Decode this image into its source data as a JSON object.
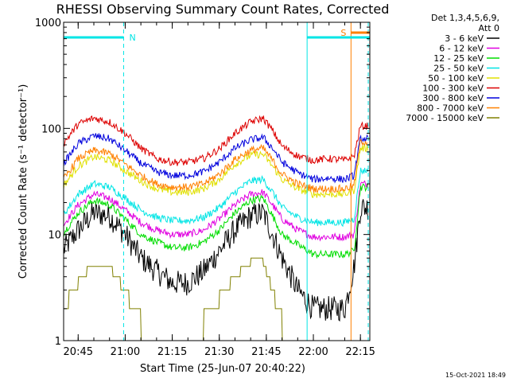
{
  "chart_data": {
    "type": "line",
    "title": "RHESSI Observing Summary Count Rates, Corrected",
    "xlabel": "Start Time (25-Jun-07 20:40:22)",
    "ylabel": "Corrected Count Rate (s⁻¹ detector⁻¹)",
    "y_scale": "log",
    "ylim": [
      1,
      1000
    ],
    "xlim": [
      "20:40:22",
      "22:18"
    ],
    "x_ticks": [
      "20:45",
      "21:00",
      "21:15",
      "21:30",
      "21:45",
      "22:00",
      "22:15"
    ],
    "y_ticks": [
      "1",
      "10",
      "100",
      "1000"
    ],
    "grid": false,
    "legend_header": [
      "Det 1,3,4,5,6,9,",
      "Att 0"
    ],
    "legend_position": "right",
    "series": [
      {
        "name": "3 - 6 keV",
        "color": "#000000",
        "x": [
          "20:40",
          "20:45",
          "20:50",
          "20:55",
          "21:00",
          "21:05",
          "21:10",
          "21:15",
          "21:20",
          "21:25",
          "21:30",
          "21:35",
          "21:40",
          "21:44",
          "21:47",
          "21:50",
          "21:55",
          "22:00",
          "22:05",
          "22:10",
          "22:13",
          "22:15"
        ],
        "y": [
          7,
          11,
          16,
          15,
          10,
          6,
          4.5,
          3.5,
          3.5,
          4.5,
          7,
          11,
          15,
          16,
          10,
          6,
          3,
          2,
          2,
          2,
          5,
          18
        ]
      },
      {
        "name": "6 - 12 keV",
        "color": "#e000e0",
        "x": [
          "20:40",
          "20:45",
          "20:50",
          "20:55",
          "21:00",
          "21:05",
          "21:10",
          "21:15",
          "21:20",
          "21:25",
          "21:30",
          "21:35",
          "21:40",
          "21:44",
          "21:47",
          "21:50",
          "21:55",
          "22:00",
          "22:05",
          "22:10",
          "22:13",
          "22:15"
        ],
        "y": [
          12,
          19,
          24,
          22,
          17,
          13,
          11,
          10,
          10,
          11,
          14,
          19,
          24,
          25,
          19,
          14,
          11,
          9.5,
          9.5,
          9.5,
          10,
          30
        ]
      },
      {
        "name": "12 - 25 keV",
        "color": "#00dd00",
        "x": [
          "20:40",
          "20:45",
          "20:50",
          "20:55",
          "21:00",
          "21:05",
          "21:10",
          "21:15",
          "21:20",
          "21:25",
          "21:30",
          "21:35",
          "21:40",
          "21:44",
          "21:47",
          "21:50",
          "21:55",
          "22:00",
          "22:05",
          "22:10",
          "22:13",
          "22:15"
        ],
        "y": [
          10,
          16,
          21,
          19,
          14,
          10,
          8.5,
          7.5,
          7.5,
          8.5,
          11,
          16,
          21,
          22,
          15,
          10,
          8,
          6.5,
          6.5,
          6.5,
          7,
          28
        ]
      },
      {
        "name": "25 - 50 keV",
        "color": "#00e5e5",
        "x": [
          "20:40",
          "20:45",
          "20:50",
          "20:55",
          "21:00",
          "21:05",
          "21:10",
          "21:15",
          "21:20",
          "21:25",
          "21:30",
          "21:35",
          "21:40",
          "21:44",
          "21:47",
          "21:50",
          "21:55",
          "22:00",
          "22:05",
          "22:10",
          "22:13",
          "22:15"
        ],
        "y": [
          15,
          24,
          30,
          28,
          22,
          17,
          14.5,
          13.5,
          13.5,
          14.5,
          18,
          25,
          32,
          33,
          25,
          18,
          14.5,
          13,
          13,
          13,
          14,
          40
        ]
      },
      {
        "name": "50 - 100 keV",
        "color": "#e0e000",
        "x": [
          "20:40",
          "20:45",
          "20:50",
          "20:55",
          "21:00",
          "21:05",
          "21:10",
          "21:15",
          "21:20",
          "21:25",
          "21:30",
          "21:35",
          "21:40",
          "21:44",
          "21:47",
          "21:50",
          "21:55",
          "22:00",
          "22:05",
          "22:10",
          "22:13",
          "22:15"
        ],
        "y": [
          28,
          44,
          54,
          50,
          40,
          32,
          27,
          25,
          25,
          27,
          33,
          46,
          56,
          57,
          44,
          33,
          27,
          24,
          24,
          24,
          26,
          65
        ]
      },
      {
        "name": "100 - 300 keV",
        "color": "#dd0000",
        "x": [
          "20:40",
          "20:45",
          "20:50",
          "20:55",
          "21:00",
          "21:05",
          "21:10",
          "21:15",
          "21:20",
          "21:25",
          "21:30",
          "21:35",
          "21:40",
          "21:44",
          "21:47",
          "21:50",
          "21:55",
          "22:00",
          "22:05",
          "22:10",
          "22:13",
          "22:15"
        ],
        "y": [
          70,
          110,
          125,
          115,
          90,
          65,
          52,
          48,
          48,
          52,
          64,
          90,
          115,
          125,
          95,
          68,
          55,
          50,
          52,
          50,
          55,
          105
        ]
      },
      {
        "name": "300 - 800 keV",
        "color": "#0000dd",
        "x": [
          "20:40",
          "20:45",
          "20:50",
          "20:55",
          "21:00",
          "21:05",
          "21:10",
          "21:15",
          "21:20",
          "21:25",
          "21:30",
          "21:35",
          "21:40",
          "21:44",
          "21:47",
          "21:50",
          "21:55",
          "22:00",
          "22:05",
          "22:10",
          "22:13",
          "22:15"
        ],
        "y": [
          45,
          72,
          85,
          80,
          62,
          47,
          39,
          36,
          36,
          39,
          48,
          65,
          78,
          82,
          65,
          48,
          38,
          33,
          34,
          33,
          36,
          80
        ]
      },
      {
        "name": "800 - 7000 keV",
        "color": "#ff8000",
        "x": [
          "20:40",
          "20:45",
          "20:50",
          "20:55",
          "21:00",
          "21:05",
          "21:10",
          "21:15",
          "21:20",
          "21:25",
          "21:30",
          "21:35",
          "21:40",
          "21:44",
          "21:47",
          "21:50",
          "21:55",
          "22:00",
          "22:05",
          "22:10",
          "22:13",
          "22:15"
        ],
        "y": [
          32,
          52,
          62,
          58,
          46,
          36,
          30,
          28,
          28,
          30,
          37,
          51,
          62,
          65,
          50,
          37,
          30,
          27,
          27,
          27,
          29,
          75
        ]
      },
      {
        "name": "7000 - 15000 keV",
        "color": "#808000",
        "x": [
          "20:40",
          "20:45",
          "20:50",
          "20:55",
          "21:00",
          "21:05",
          "21:10",
          "21:15",
          "21:20",
          "21:25",
          "21:30",
          "21:35",
          "21:40",
          "21:44",
          "21:47",
          "21:50",
          "21:55",
          "22:00",
          "22:05",
          "22:10",
          "22:13",
          "22:15"
        ],
        "y": [
          2,
          3.5,
          5.5,
          5,
          3,
          1.5,
          1,
          1,
          1,
          1.5,
          2.5,
          4,
          5.5,
          5.5,
          3,
          1.5,
          1,
          1,
          1,
          1,
          1,
          1
        ]
      }
    ],
    "flag_bars": [
      {
        "label": "N",
        "color": "#00e5e5",
        "start": "20:40:22",
        "end": "20:59:30"
      },
      {
        "label": "",
        "color": "#00e5e5",
        "start": "21:58",
        "end": "22:18"
      },
      {
        "label": "S",
        "color": "#ff8000",
        "start": "22:12",
        "end": "22:18"
      }
    ],
    "markers": [
      {
        "time": "20:40:22",
        "color": "#00e5e5",
        "style": "solid"
      },
      {
        "time": "20:59:30",
        "color": "#00e5e5",
        "style": "dashed"
      },
      {
        "time": "21:58",
        "color": "#00e5e5",
        "style": "solid"
      },
      {
        "time": "22:12",
        "color": "#ff8000",
        "style": "solid"
      },
      {
        "time": "22:17:30",
        "color": "#00e5e5",
        "style": "dashed"
      }
    ],
    "timestamp": "15-Oct-2021 18:49"
  }
}
